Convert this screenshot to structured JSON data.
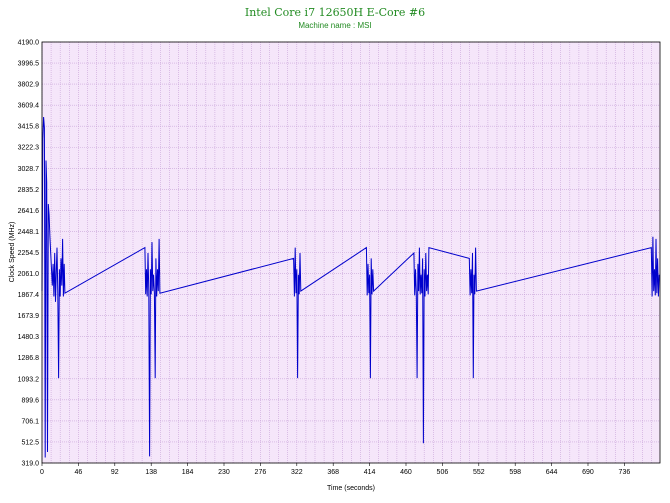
{
  "chart_data": {
    "type": "line",
    "title": "Intel Core i7 12650H E-Core #6",
    "subtitle": "Machine name : MSI",
    "xlabel": "Time (seconds)",
    "ylabel": "Clock Speed (MHz)",
    "xlim": [
      0,
      781
    ],
    "ylim": [
      319.0,
      4190.0
    ],
    "xticks": [
      "0",
      "46",
      "92",
      "138",
      "184",
      "230",
      "276",
      "322",
      "368",
      "414",
      "460",
      "506",
      "552",
      "598",
      "644",
      "690",
      "736"
    ],
    "yticks": [
      "4190.0",
      "3996.5",
      "3802.9",
      "3609.4",
      "3415.8",
      "3222.3",
      "3028.7",
      "2835.2",
      "2641.6",
      "2448.1",
      "2254.5",
      "2061.0",
      "1867.4",
      "1673.9",
      "1480.3",
      "1286.8",
      "1093.2",
      "899.6",
      "706.1",
      "512.5",
      "319.0"
    ],
    "grid": true,
    "colors": {
      "plot_bg": "#f5e6fa",
      "grid": "#c8a2d8",
      "line": "#0000cc",
      "title": "#228B22"
    },
    "series": [
      {
        "values": [
          [
            0,
            1900
          ],
          [
            1,
            3300
          ],
          [
            2,
            3500
          ],
          [
            3,
            3400
          ],
          [
            4,
            370
          ],
          [
            5,
            3100
          ],
          [
            6,
            2900
          ],
          [
            7,
            420
          ],
          [
            8,
            2700
          ],
          [
            9,
            2600
          ],
          [
            10,
            2400
          ],
          [
            11,
            2250
          ],
          [
            12,
            2100
          ],
          [
            13,
            1950
          ],
          [
            14,
            2150
          ],
          [
            15,
            1850
          ],
          [
            16,
            2250
          ],
          [
            17,
            1800
          ],
          [
            18,
            2050
          ],
          [
            19,
            2300
          ],
          [
            20,
            1880
          ],
          [
            21,
            1100
          ],
          [
            22,
            2100
          ],
          [
            23,
            1850
          ],
          [
            24,
            2200
          ],
          [
            25,
            1950
          ],
          [
            26,
            2380
          ],
          [
            27,
            1850
          ],
          [
            28,
            2150
          ],
          [
            29,
            1880
          ],
          [
            130,
            2300
          ],
          [
            131,
            1870
          ],
          [
            132,
            2100
          ],
          [
            133,
            1850
          ],
          [
            134,
            2250
          ],
          [
            135,
            1900
          ],
          [
            136,
            380
          ],
          [
            137,
            2100
          ],
          [
            138,
            1870
          ],
          [
            139,
            2350
          ],
          [
            140,
            1900
          ],
          [
            141,
            2050
          ],
          [
            142,
            1880
          ],
          [
            143,
            1100
          ],
          [
            144,
            2200
          ],
          [
            145,
            1850
          ],
          [
            146,
            2100
          ],
          [
            147,
            1900
          ],
          [
            148,
            2380
          ],
          [
            149,
            1880
          ],
          [
            318,
            2200
          ],
          [
            319,
            1850
          ],
          [
            320,
            2300
          ],
          [
            321,
            1880
          ],
          [
            322,
            2100
          ],
          [
            323,
            1100
          ],
          [
            324,
            2050
          ],
          [
            325,
            1870
          ],
          [
            326,
            2250
          ],
          [
            327,
            1900
          ],
          [
            410,
            2300
          ],
          [
            411,
            1860
          ],
          [
            412,
            2150
          ],
          [
            413,
            1880
          ],
          [
            414,
            2050
          ],
          [
            415,
            1100
          ],
          [
            416,
            2200
          ],
          [
            417,
            1870
          ],
          [
            418,
            2100
          ],
          [
            419,
            1900
          ],
          [
            470,
            2250
          ],
          [
            471,
            1860
          ],
          [
            472,
            2100
          ],
          [
            473,
            1880
          ],
          [
            474,
            1100
          ],
          [
            475,
            2150
          ],
          [
            476,
            1900
          ],
          [
            477,
            2300
          ],
          [
            478,
            1870
          ],
          [
            479,
            2050
          ],
          [
            480,
            1880
          ],
          [
            481,
            2200
          ],
          [
            482,
            500
          ],
          [
            483,
            2100
          ],
          [
            484,
            1850
          ],
          [
            485,
            2250
          ],
          [
            486,
            1900
          ],
          [
            487,
            2050
          ],
          [
            488,
            1870
          ],
          [
            489,
            2300
          ],
          [
            540,
            2200
          ],
          [
            541,
            1860
          ],
          [
            542,
            2100
          ],
          [
            543,
            1880
          ],
          [
            544,
            2250
          ],
          [
            545,
            1100
          ],
          [
            546,
            2050
          ],
          [
            547,
            1870
          ],
          [
            548,
            2300
          ],
          [
            549,
            1900
          ],
          [
            770,
            2300
          ],
          [
            771,
            1850
          ],
          [
            772,
            2400
          ],
          [
            773,
            1900
          ],
          [
            774,
            2100
          ],
          [
            775,
            1860
          ],
          [
            776,
            2380
          ],
          [
            777,
            1880
          ],
          [
            778,
            2200
          ],
          [
            779,
            1850
          ],
          [
            780,
            2050
          ]
        ]
      }
    ]
  }
}
